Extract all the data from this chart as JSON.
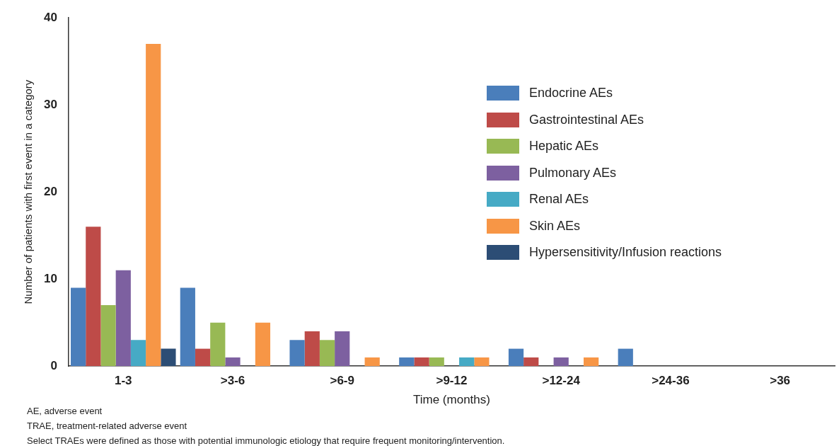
{
  "chart_data": {
    "type": "bar",
    "xlabel": "Time (months)",
    "ylabel": "Number of patients with first event in a category",
    "categories": [
      "1-3",
      ">3-6",
      ">6-9",
      ">9-12",
      ">12-24",
      ">24-36",
      ">36"
    ],
    "series": [
      {
        "name": "Endocrine AEs",
        "color": "#4a7ebb",
        "values": [
          9,
          9,
          3,
          1,
          2,
          2,
          0
        ]
      },
      {
        "name": "Gastrointestinal AEs",
        "color": "#be4b48",
        "values": [
          16,
          2,
          4,
          1,
          1,
          0,
          0
        ]
      },
      {
        "name": "Hepatic AEs",
        "color": "#98b954",
        "values": [
          7,
          5,
          3,
          1,
          0,
          0,
          0
        ]
      },
      {
        "name": "Pulmonary AEs",
        "color": "#7d60a0",
        "values": [
          11,
          1,
          4,
          0,
          1,
          0,
          0
        ]
      },
      {
        "name": "Renal AEs",
        "color": "#46aac5",
        "values": [
          3,
          0,
          0,
          1,
          0,
          0,
          0
        ]
      },
      {
        "name": "Skin AEs",
        "color": "#f79646",
        "values": [
          37,
          5,
          1,
          1,
          1,
          0,
          0
        ]
      },
      {
        "name": "Hypersensitivity/Infusion reactions",
        "color": "#2c4d75",
        "values": [
          2,
          0,
          0,
          0,
          0,
          0,
          0
        ]
      }
    ],
    "ylim": [
      0,
      40
    ],
    "yticks": [
      0,
      10,
      20,
      30,
      40
    ],
    "grid": false,
    "legend": "top right",
    "annotations": [
      "AE, adverse event",
      "TRAE, treatment-related adverse event",
      "Select TRAEs were defined as those with potential immunologic etiology that require frequent monitoring/intervention."
    ]
  }
}
